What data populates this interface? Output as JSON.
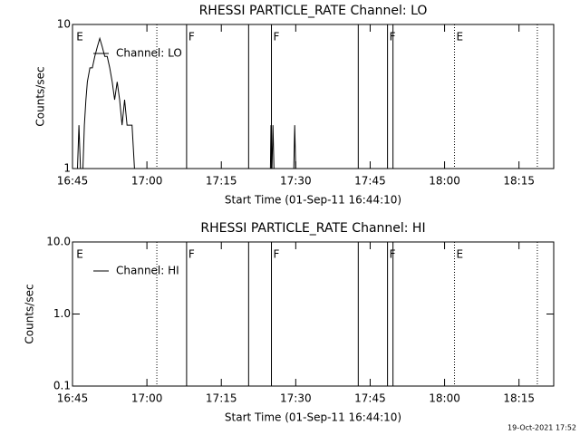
{
  "chart_data": [
    {
      "type": "line",
      "title": "RHESSI PARTICLE_RATE Channel: LO",
      "xlabel": "Start Time (01-Sep-11 16:44:10)",
      "ylabel": "Counts/sec",
      "log_y": true,
      "xlim": [
        1005,
        1102
      ],
      "ylim": [
        1,
        10
      ],
      "xticks": [
        {
          "value": 1005,
          "label": "16:45"
        },
        {
          "value": 1020,
          "label": "17:00"
        },
        {
          "value": 1035,
          "label": "17:15"
        },
        {
          "value": 1050,
          "label": "17:30"
        },
        {
          "value": 1065,
          "label": "17:45"
        },
        {
          "value": 1080,
          "label": "18:00"
        },
        {
          "value": 1095,
          "label": "18:15"
        }
      ],
      "yticks": [
        1,
        10
      ],
      "legend": "upper-left",
      "series": [
        {
          "name": "Channel: LO",
          "color": "#000000",
          "x": [
            1006,
            1006.3,
            1006.6,
            1007.1,
            1007.4,
            1007.7,
            1008,
            1008.5,
            1009,
            1009.5,
            1010,
            1010.5,
            1011,
            1011.5,
            1012,
            1012.5,
            1013,
            1013.5,
            1014,
            1014.5,
            1015,
            1015.5,
            1016,
            1016.5,
            1017,
            1017.5,
            1018,
            null,
            1044.9,
            1045,
            1045.2,
            1045.4,
            1045.6,
            null,
            1049.6,
            1049.8,
            1050
          ],
          "values": [
            1,
            2,
            1,
            1,
            2,
            3,
            4,
            5,
            5,
            6,
            7,
            8,
            7,
            6,
            6,
            5,
            4,
            3,
            4,
            3,
            2,
            3,
            2,
            2,
            2,
            1,
            1,
            null,
            1,
            2,
            1,
            2,
            1,
            null,
            1,
            2,
            1
          ]
        }
      ],
      "markers": [
        {
          "x": 1005.4,
          "label": "E"
        },
        {
          "x": 1022,
          "style": "dotted"
        },
        {
          "x": 1028,
          "style": "solid",
          "label": "F"
        },
        {
          "x": 1040.5,
          "style": "solid"
        },
        {
          "x": 1045.1,
          "style": "solid",
          "label": "F"
        },
        {
          "x": 1062.6,
          "style": "solid"
        },
        {
          "x": 1068.5,
          "style": "solid",
          "label": "F"
        },
        {
          "x": 1069.6,
          "style": "solid"
        },
        {
          "x": 1082,
          "style": "dotted",
          "label": "E"
        },
        {
          "x": 1098.7,
          "style": "dotted"
        }
      ]
    },
    {
      "type": "line",
      "title": "RHESSI PARTICLE_RATE Channel: HI",
      "xlabel": "Start Time (01-Sep-11 16:44:10)",
      "ylabel": "Counts/sec",
      "log_y": true,
      "xlim": [
        1005,
        1102
      ],
      "ylim": [
        0.1,
        10
      ],
      "xticks": [
        {
          "value": 1005,
          "label": "16:45"
        },
        {
          "value": 1020,
          "label": "17:00"
        },
        {
          "value": 1035,
          "label": "17:15"
        },
        {
          "value": 1050,
          "label": "17:30"
        },
        {
          "value": 1065,
          "label": "17:45"
        },
        {
          "value": 1080,
          "label": "18:00"
        },
        {
          "value": 1095,
          "label": "18:15"
        }
      ],
      "yticks": [
        {
          "value": 0.1,
          "label": "0.1"
        },
        {
          "value": 1,
          "label": "1.0"
        },
        {
          "value": 10,
          "label": "10.0"
        }
      ],
      "legend": "upper-left",
      "series": [
        {
          "name": "Channel: HI",
          "color": "#000000",
          "x": [],
          "values": []
        }
      ],
      "markers": [
        {
          "x": 1005.4,
          "label": "E"
        },
        {
          "x": 1022,
          "style": "dotted"
        },
        {
          "x": 1028,
          "style": "solid",
          "label": "F"
        },
        {
          "x": 1040.5,
          "style": "solid"
        },
        {
          "x": 1045.1,
          "style": "solid",
          "label": "F"
        },
        {
          "x": 1062.6,
          "style": "solid"
        },
        {
          "x": 1068.5,
          "style": "solid",
          "label": "F"
        },
        {
          "x": 1069.6,
          "style": "solid"
        },
        {
          "x": 1082,
          "style": "dotted",
          "label": "E"
        },
        {
          "x": 1098.7,
          "style": "dotted"
        }
      ]
    }
  ],
  "footer": "19-Oct-2021 17:52"
}
